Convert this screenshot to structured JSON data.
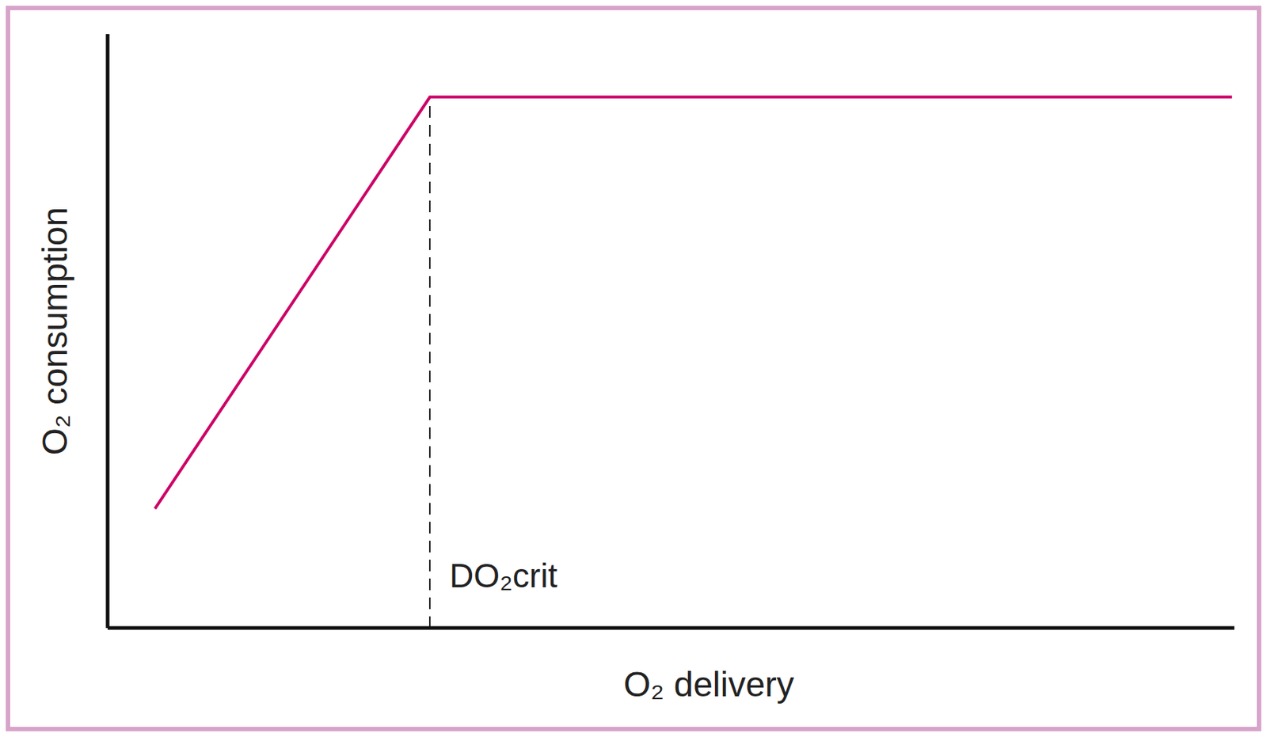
{
  "chart_data": {
    "type": "line",
    "x_label": "O₂ delivery",
    "y_label": "O₂ consumption",
    "x": [
      4.2,
      28.6,
      99.8
    ],
    "values": [
      20.1,
      89.4,
      89.4
    ],
    "color": "#cc0066",
    "xlim": [
      0,
      100
    ],
    "ylim": [
      0,
      100
    ],
    "grid": false,
    "tick_labels": false,
    "annotations": [
      {
        "text": "DO₂crit",
        "x": 28.6,
        "y": 89.4
      }
    ]
  }
}
